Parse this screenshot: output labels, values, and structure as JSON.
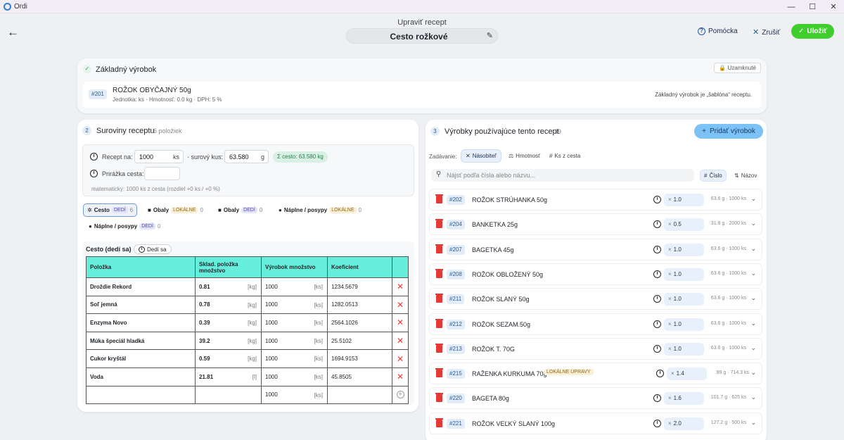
{
  "window": {
    "app_name": "Ordi",
    "minimize": "—",
    "maximize": "☐",
    "close": "✕"
  },
  "header": {
    "edit_label": "Upraviť recept",
    "recipe_title": "Cesto rožkové",
    "help": "Pomócka",
    "cancel": "Zrušiť",
    "save": "Uložiť"
  },
  "base_product": {
    "title": "Základný výrobok",
    "locked": "Uzamknuté",
    "id": "#201",
    "name": "ROŽOK OBYČAJNÝ 50g",
    "meta": "Jednotka: ks · Hmotnosť: 0.0 kg · DPH: 5 %",
    "note": "Základný výrobok je „šablóna“ receptu."
  },
  "ingredients": {
    "step": "2",
    "title": "Suroviny receptu",
    "count": "6 položiek",
    "recept_na_label": "Recept na:",
    "recept_na_value": "1000",
    "recept_na_unit": "ks",
    "raw_piece_label": "· surový kus:",
    "raw_piece_value": "63.580",
    "raw_piece_unit": "g",
    "sum_chip": "Σ cesto: 63.580 kg",
    "markup_label": "Prirážka cesta:",
    "calc_note": "matematicky: 1000 ks z cesta (rozdiel +0 ks / +0 %)",
    "tabs": [
      {
        "icon": "✲",
        "label": "Cesto",
        "badge": "DEDÍ",
        "badge_type": "dedi",
        "count": "6"
      },
      {
        "icon": "■",
        "label": "Obaly",
        "badge": "LOKÁLNE",
        "badge_type": "lok",
        "count": "0"
      },
      {
        "icon": "■",
        "label": "Obaly",
        "badge": "DEDÍ",
        "badge_type": "dedi",
        "count": "0"
      },
      {
        "icon": "●",
        "label": "Náplne / posypy",
        "badge": "LOKÁLNE",
        "badge_type": "lok",
        "count": "0"
      },
      {
        "icon": "●",
        "label": "Náplne / posypy",
        "badge": "DEDÍ",
        "badge_type": "dedi",
        "count": "0"
      }
    ],
    "section_title": "Cesto (dedí sa)",
    "section_pill": "Dedí sa",
    "columns": [
      "Položka",
      "Sklad. položka množstvo",
      "Výrobok množstvo",
      "Koeficient"
    ],
    "rows": [
      {
        "name": "Droždie Rekord",
        "qty": "0.81",
        "qty_unit": "[kg]",
        "prod": "1000",
        "prod_unit": "[ks]",
        "coef": "1234.5679"
      },
      {
        "name": "Soľ jemná",
        "qty": "0.78",
        "qty_unit": "[kg]",
        "prod": "1000",
        "prod_unit": "[ks]",
        "coef": "1282.0513"
      },
      {
        "name": "Enzyma Novo",
        "qty": "0.39",
        "qty_unit": "[kg]",
        "prod": "1000",
        "prod_unit": "[ks]",
        "coef": "2564.1026"
      },
      {
        "name": "Múka špeciál hladká",
        "qty": "39.2",
        "qty_unit": "[kg]",
        "prod": "1000",
        "prod_unit": "[ks]",
        "coef": "25.5102"
      },
      {
        "name": "Cukor kryštál",
        "qty": "0.59",
        "qty_unit": "[kg]",
        "prod": "1000",
        "prod_unit": "[ks]",
        "coef": "1694.9153"
      },
      {
        "name": "Voda",
        "qty": "21.81",
        "qty_unit": "[l]",
        "prod": "1000",
        "prod_unit": "[ks]",
        "coef": "45.8505"
      }
    ],
    "new_row": {
      "prod": "1000",
      "prod_unit": "[ks]"
    }
  },
  "products_using": {
    "step": "3",
    "title": "Výrobky používajúce tento recept",
    "count": "39",
    "add_button": "Pridať výrobok",
    "mode_label": "Zadávanie:",
    "modes": [
      {
        "icon": "✕",
        "label": "Násobiteľ"
      },
      {
        "icon": "⚖",
        "label": "Hmotnosť"
      },
      {
        "icon": "#",
        "label": "Ks z cesta"
      }
    ],
    "search_placeholder": "Nájsť podľa čísla alebo názvu...",
    "sort": [
      {
        "icon": "#",
        "label": "Číslo"
      },
      {
        "icon": "⇅",
        "label": "Názov"
      }
    ],
    "multiplier_sign": "×",
    "items": [
      {
        "id": "#202",
        "name": "ROŽOK STRÚHANKA 50g",
        "factor": "1.0",
        "meta": "63.6 g · 1000 ks",
        "badge": ""
      },
      {
        "id": "#204",
        "name": "BANKETKA 25g",
        "factor": "0.5",
        "meta": "31.8 g · 2000 ks",
        "badge": ""
      },
      {
        "id": "#207",
        "name": "BAGETKA 45g",
        "factor": "1.0",
        "meta": "63.6 g · 1000 ks",
        "badge": ""
      },
      {
        "id": "#208",
        "name": "ROŽOK OBLOŽENÝ 50g",
        "factor": "1.0",
        "meta": "63.6 g · 1000 ks",
        "badge": ""
      },
      {
        "id": "#211",
        "name": "ROŽOK SLANÝ 50g",
        "factor": "1.0",
        "meta": "63.6 g · 1000 ks",
        "badge": ""
      },
      {
        "id": "#212",
        "name": "ROŽOK SEZAM.50g",
        "factor": "1.0",
        "meta": "63.6 g · 1000 ks",
        "badge": ""
      },
      {
        "id": "#213",
        "name": "ROŽOK T. 70G",
        "factor": "1.0",
        "meta": "63.6 g · 1000 ks",
        "badge": ""
      },
      {
        "id": "#215",
        "name": "RAŽENKA KURKUMA 70g",
        "factor": "1.4",
        "meta": "89 g · 714.3 ks",
        "badge": "LOKÁLNE ÚPRAVY"
      },
      {
        "id": "#220",
        "name": "BAGETA 80g",
        "factor": "1.6",
        "meta": "101.7 g · 625 ks",
        "badge": ""
      },
      {
        "id": "#221",
        "name": "ROŽOK VEĽKÝ SLANÝ 100g",
        "factor": "2.0",
        "meta": "127.2 g · 500 ks",
        "badge": ""
      }
    ]
  }
}
